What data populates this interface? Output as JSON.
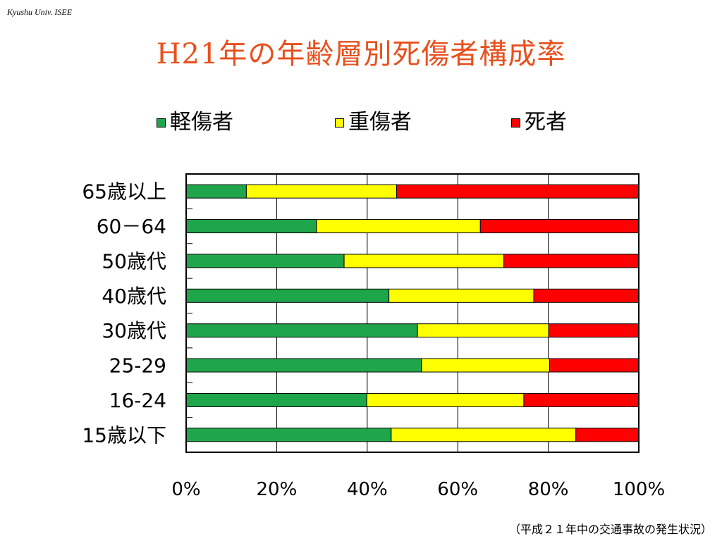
{
  "header": {
    "org": "Kyushu Univ. ISEE"
  },
  "title": "H21年の年齢層別死傷者構成率",
  "footer": {
    "caption": "（平成２１年中の交通事故の発生状況）"
  },
  "legend": [
    {
      "label": "軽傷者",
      "color": "#1fa64a"
    },
    {
      "label": "重傷者",
      "color": "#ffff00"
    },
    {
      "label": "死者",
      "color": "#ff0000"
    }
  ],
  "chart_data": {
    "type": "bar",
    "orientation": "horizontal",
    "stacked": true,
    "categories": [
      "65歳以上",
      "60－64",
      "50歳代",
      "40歳代",
      "30歳代",
      "25-29",
      "16-24",
      "15歳以下"
    ],
    "series": [
      {
        "name": "軽傷者",
        "color": "#1fa64a",
        "values": [
          13.3,
          28.8,
          34.9,
          44.8,
          51.1,
          52.0,
          39.9,
          45.3
        ]
      },
      {
        "name": "重傷者",
        "color": "#ffff00",
        "values": [
          33.2,
          36.2,
          35.3,
          32.0,
          29.0,
          28.3,
          34.7,
          40.8
        ]
      },
      {
        "name": "死者",
        "color": "#ff0000",
        "values": [
          53.5,
          35.0,
          29.8,
          23.2,
          19.9,
          19.7,
          25.4,
          13.9
        ]
      }
    ],
    "xticks": [
      "0%",
      "20%",
      "40%",
      "60%",
      "80%",
      "100%"
    ],
    "xlim": [
      0,
      100
    ],
    "grid": true,
    "legend_position": "top"
  }
}
